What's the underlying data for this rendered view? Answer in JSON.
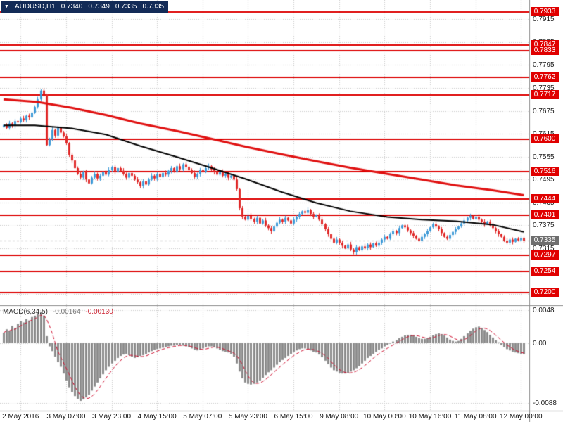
{
  "header": {
    "symbol": "AUDUSD,H1",
    "open": "0.7340",
    "high": "0.7349",
    "low": "0.7335",
    "close": "0.7335"
  },
  "macd_header": {
    "label": "MACD(6,34,5)",
    "macd_value": "-0.00164",
    "signal_value": "-0.00130"
  },
  "colors": {
    "up_candle": "#3f9bd8",
    "down_candle": "#e02a2a",
    "ma_fast": "#000000",
    "ma_slow": "#e01010",
    "level_line": "#dd0000",
    "level_box": "#e00000",
    "current_price_box": "#6e6e6e",
    "grid": "#c9c9c9",
    "separator": "#8a8a8a",
    "histogram": "#8c8c8c",
    "signal_line": "#d01030",
    "title_bg": "#132b57"
  },
  "price_axis": {
    "gray_ticks": [
      "0.7915",
      "0.7855",
      "0.7795",
      "0.7735",
      "0.7675",
      "0.7615",
      "0.7555",
      "0.7495",
      "0.7435",
      "0.7375",
      "0.7315",
      "0.7255",
      "0.7195"
    ]
  },
  "macd_axis": {
    "ticks": [
      "0.0048",
      "0.00",
      "-0.0088"
    ]
  },
  "time_axis": {
    "labels": [
      {
        "bar": 6,
        "text": "2 May 2016"
      },
      {
        "bar": 22,
        "text": "3 May 07:00"
      },
      {
        "bar": 38,
        "text": "3 May 23:00"
      },
      {
        "bar": 54,
        "text": "4 May 15:00"
      },
      {
        "bar": 70,
        "text": "5 May 07:00"
      },
      {
        "bar": 86,
        "text": "5 May 23:00"
      },
      {
        "bar": 102,
        "text": "6 May 15:00"
      },
      {
        "bar": 118,
        "text": "9 May 08:00"
      },
      {
        "bar": 134,
        "text": "10 May 00:00"
      },
      {
        "bar": 150,
        "text": "10 May 16:00"
      },
      {
        "bar": 166,
        "text": "11 May 08:00"
      },
      {
        "bar": 182,
        "text": "12 May 00:00"
      }
    ]
  },
  "chart_data": {
    "type": "candlestick",
    "symbol": "AUDUSD",
    "timeframe": "H1",
    "title": "AUDUSD,H1 0.7340 0.7349 0.7335 0.7335",
    "last_ohlc": {
      "open": 0.734,
      "high": 0.7349,
      "low": 0.7335,
      "close": 0.7335
    },
    "ylim": [
      0.7166,
      0.7965
    ],
    "bar_count": 184,
    "current_price": 0.7335,
    "horizontal_levels": [
      0.7933,
      0.7847,
      0.7833,
      0.7762,
      0.7717,
      0.76,
      0.7516,
      0.7444,
      0.7401,
      0.7297,
      0.7254,
      0.72
    ],
    "closes": [
      0.7638,
      0.763,
      0.7642,
      0.7636,
      0.7648,
      0.7645,
      0.7655,
      0.765,
      0.7662,
      0.7658,
      0.767,
      0.7685,
      0.7705,
      0.7728,
      0.7718,
      0.7585,
      0.76,
      0.7625,
      0.761,
      0.763,
      0.7618,
      0.7608,
      0.759,
      0.756,
      0.7545,
      0.7525,
      0.751,
      0.75,
      0.7515,
      0.7495,
      0.7485,
      0.75,
      0.751,
      0.7498,
      0.7505,
      0.7515,
      0.7508,
      0.752,
      0.7528,
      0.7515,
      0.7525,
      0.7518,
      0.751,
      0.75,
      0.7512,
      0.7505,
      0.7495,
      0.7488,
      0.7478,
      0.749,
      0.7482,
      0.7495,
      0.7505,
      0.7498,
      0.751,
      0.7502,
      0.7512,
      0.7508,
      0.7518,
      0.7525,
      0.7515,
      0.753,
      0.7522,
      0.7535,
      0.7528,
      0.752,
      0.7512,
      0.7502,
      0.751,
      0.752,
      0.7515,
      0.7525,
      0.753,
      0.7522,
      0.7515,
      0.7508,
      0.7515,
      0.7505,
      0.751,
      0.75,
      0.7505,
      0.7495,
      0.747,
      0.742,
      0.7398,
      0.739,
      0.74,
      0.7392,
      0.7385,
      0.7395,
      0.738,
      0.7388,
      0.7375,
      0.7368,
      0.736,
      0.7372,
      0.7382,
      0.739,
      0.7385,
      0.7395,
      0.7388,
      0.738,
      0.739,
      0.7398,
      0.7405,
      0.7412,
      0.7408,
      0.7415,
      0.7405,
      0.7398,
      0.7402,
      0.739,
      0.7378,
      0.7365,
      0.7352,
      0.734,
      0.733,
      0.7338,
      0.733,
      0.7322,
      0.7315,
      0.7325,
      0.7312,
      0.7305,
      0.7318,
      0.731,
      0.732,
      0.7315,
      0.7325,
      0.7318,
      0.7328,
      0.7322,
      0.733,
      0.7338,
      0.7345,
      0.734,
      0.7352,
      0.736,
      0.7355,
      0.7368,
      0.7375,
      0.737,
      0.7362,
      0.7355,
      0.7348,
      0.734,
      0.7335,
      0.7345,
      0.7352,
      0.736,
      0.737,
      0.7378,
      0.7372,
      0.7365,
      0.7355,
      0.7345,
      0.734,
      0.735,
      0.7358,
      0.7365,
      0.7372,
      0.738,
      0.7388,
      0.7395,
      0.74,
      0.7392,
      0.7398,
      0.739,
      0.7385,
      0.7378,
      0.7385,
      0.7375,
      0.7368,
      0.736,
      0.7352,
      0.7345,
      0.7335,
      0.733,
      0.7338,
      0.7332,
      0.734,
      0.7336,
      0.7342,
      0.7335
    ],
    "ma_fast_black_anchors": [
      [
        0,
        0.7637
      ],
      [
        11,
        0.7637
      ],
      [
        24,
        0.7629
      ],
      [
        36,
        0.7613
      ],
      [
        48,
        0.7583
      ],
      [
        61,
        0.7554
      ],
      [
        73,
        0.7526
      ],
      [
        85,
        0.7497
      ],
      [
        98,
        0.7462
      ],
      [
        110,
        0.7434
      ],
      [
        122,
        0.7412
      ],
      [
        135,
        0.7397
      ],
      [
        147,
        0.739
      ],
      [
        159,
        0.7386
      ],
      [
        172,
        0.7377
      ],
      [
        183,
        0.7358
      ]
    ],
    "ma_slow_red_anchors": [
      [
        0,
        0.7705
      ],
      [
        12,
        0.7698
      ],
      [
        24,
        0.7683
      ],
      [
        36,
        0.7664
      ],
      [
        48,
        0.7642
      ],
      [
        61,
        0.7622
      ],
      [
        73,
        0.7602
      ],
      [
        85,
        0.7581
      ],
      [
        98,
        0.7561
      ],
      [
        110,
        0.7543
      ],
      [
        122,
        0.7526
      ],
      [
        135,
        0.751
      ],
      [
        147,
        0.7495
      ],
      [
        159,
        0.748
      ],
      [
        172,
        0.7467
      ],
      [
        183,
        0.7454
      ]
    ],
    "macd": {
      "label": "MACD(6,34,5)",
      "value": -0.00164,
      "signal": -0.0013,
      "signal_period": 5,
      "ylim": [
        -0.00995,
        0.00533
      ],
      "axis_ticks": [
        0.0048,
        0.0,
        -0.0088
      ],
      "values": [
        0.0015,
        0.002,
        0.0018,
        0.0025,
        0.0022,
        0.0028,
        0.0032,
        0.003,
        0.0035,
        0.0033,
        0.0038,
        0.004,
        0.0044,
        0.0046,
        0.004,
        0.001,
        -0.0005,
        -0.0012,
        -0.002,
        -0.0028,
        -0.0035,
        -0.0045,
        -0.0055,
        -0.0065,
        -0.0072,
        -0.0078,
        -0.0082,
        -0.0085,
        -0.0083,
        -0.008,
        -0.0076,
        -0.007,
        -0.0064,
        -0.0058,
        -0.0052,
        -0.0046,
        -0.004,
        -0.0035,
        -0.003,
        -0.0026,
        -0.0022,
        -0.0019,
        -0.0017,
        -0.0016,
        -0.0018,
        -0.002,
        -0.0022,
        -0.0021,
        -0.0019,
        -0.0018,
        -0.0016,
        -0.0014,
        -0.0012,
        -0.001,
        -0.0009,
        -0.0008,
        -0.0007,
        -0.0006,
        -0.0005,
        -0.0004,
        -0.0004,
        -0.0003,
        -0.0003,
        -0.0004,
        -0.0005,
        -0.0006,
        -0.0008,
        -0.001,
        -0.0011,
        -0.001,
        -0.0008,
        -0.0006,
        -0.0005,
        -0.0005,
        -0.0006,
        -0.0008,
        -0.001,
        -0.0012,
        -0.0013,
        -0.0014,
        -0.0016,
        -0.002,
        -0.003,
        -0.0042,
        -0.0052,
        -0.0058,
        -0.006,
        -0.0061,
        -0.006,
        -0.0058,
        -0.0055,
        -0.0051,
        -0.0047,
        -0.0043,
        -0.004,
        -0.0036,
        -0.0032,
        -0.0028,
        -0.0025,
        -0.0022,
        -0.0019,
        -0.0016,
        -0.0013,
        -0.0011,
        -0.0009,
        -0.0008,
        -0.0008,
        -0.0009,
        -0.0011,
        -0.0013,
        -0.0014,
        -0.0017,
        -0.0021,
        -0.0026,
        -0.0031,
        -0.0036,
        -0.004,
        -0.0042,
        -0.0044,
        -0.0045,
        -0.0045,
        -0.0044,
        -0.0042,
        -0.004,
        -0.0037,
        -0.0034,
        -0.003,
        -0.0026,
        -0.0022,
        -0.0019,
        -0.0016,
        -0.0013,
        -0.001,
        -0.0008,
        -0.0005,
        -0.0003,
        -0.0001,
        0.0002,
        0.0004,
        0.0007,
        0.0009,
        0.0011,
        0.0012,
        0.0012,
        0.0011,
        0.0009,
        0.0007,
        0.0006,
        0.0006,
        0.0007,
        0.0009,
        0.0011,
        0.0013,
        0.0014,
        0.0013,
        0.0011,
        0.0008,
        0.0005,
        0.0003,
        0.0002,
        0.0003,
        0.0006,
        0.001,
        0.0014,
        0.0018,
        0.0021,
        0.0023,
        0.0024,
        0.0022,
        0.0019,
        0.0016,
        0.0012,
        0.0008,
        0.0004,
        0.0001,
        -0.0003,
        -0.0006,
        -0.0009,
        -0.0011,
        -0.0013,
        -0.0014,
        -0.0015,
        -0.0016,
        -0.00164
      ]
    }
  }
}
